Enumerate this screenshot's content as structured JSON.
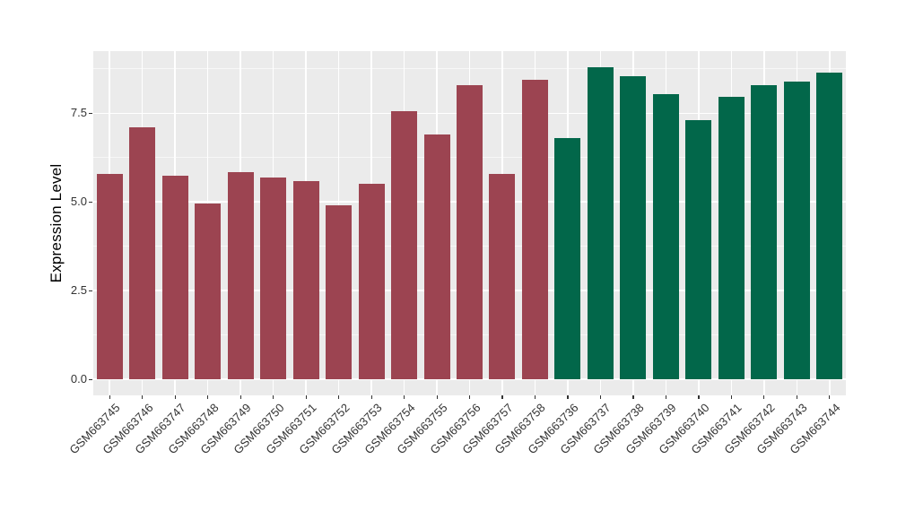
{
  "chart_data": {
    "type": "bar",
    "title": "",
    "xlabel": "",
    "ylabel": "Expression Level",
    "categories": [
      "GSM663745",
      "GSM663746",
      "GSM663747",
      "GSM663748",
      "GSM663749",
      "GSM663750",
      "GSM663751",
      "GSM663752",
      "GSM663753",
      "GSM663754",
      "GSM663755",
      "GSM663756",
      "GSM663757",
      "GSM663758",
      "GSM663736",
      "GSM663737",
      "GSM663738",
      "GSM663739",
      "GSM663740",
      "GSM663741",
      "GSM663742",
      "GSM663743",
      "GSM663744"
    ],
    "values": [
      5.8,
      7.1,
      5.75,
      4.95,
      5.85,
      5.7,
      5.6,
      4.9,
      5.5,
      7.55,
      6.9,
      8.3,
      5.8,
      8.45,
      6.8,
      8.8,
      8.55,
      8.05,
      7.3,
      7.95,
      8.3,
      8.4,
      8.65
    ],
    "groups": [
      "red",
      "red",
      "red",
      "red",
      "red",
      "red",
      "red",
      "red",
      "red",
      "red",
      "red",
      "red",
      "red",
      "red",
      "green",
      "green",
      "green",
      "green",
      "green",
      "green",
      "green",
      "green",
      "green"
    ],
    "group_colors": {
      "red": "#9C4451",
      "green": "#02674A"
    },
    "ytick_labels": [
      "0.0",
      "2.5",
      "5.0",
      "7.5"
    ],
    "ytick_values": [
      0,
      2.5,
      5.0,
      7.5
    ],
    "minor_tick_values": [
      1.25,
      3.75,
      6.25,
      8.75
    ],
    "ylim": [
      -0.45,
      9.25
    ],
    "bar_width_fraction": 0.8,
    "grid": true,
    "legend_position": "none",
    "panel_background": "#EBEBEB",
    "grid_major_color": "#FFFFFF",
    "grid_minor_color": "#F7F7F7",
    "axis_text_color": "#333333",
    "axis_title_color": "#000000"
  }
}
